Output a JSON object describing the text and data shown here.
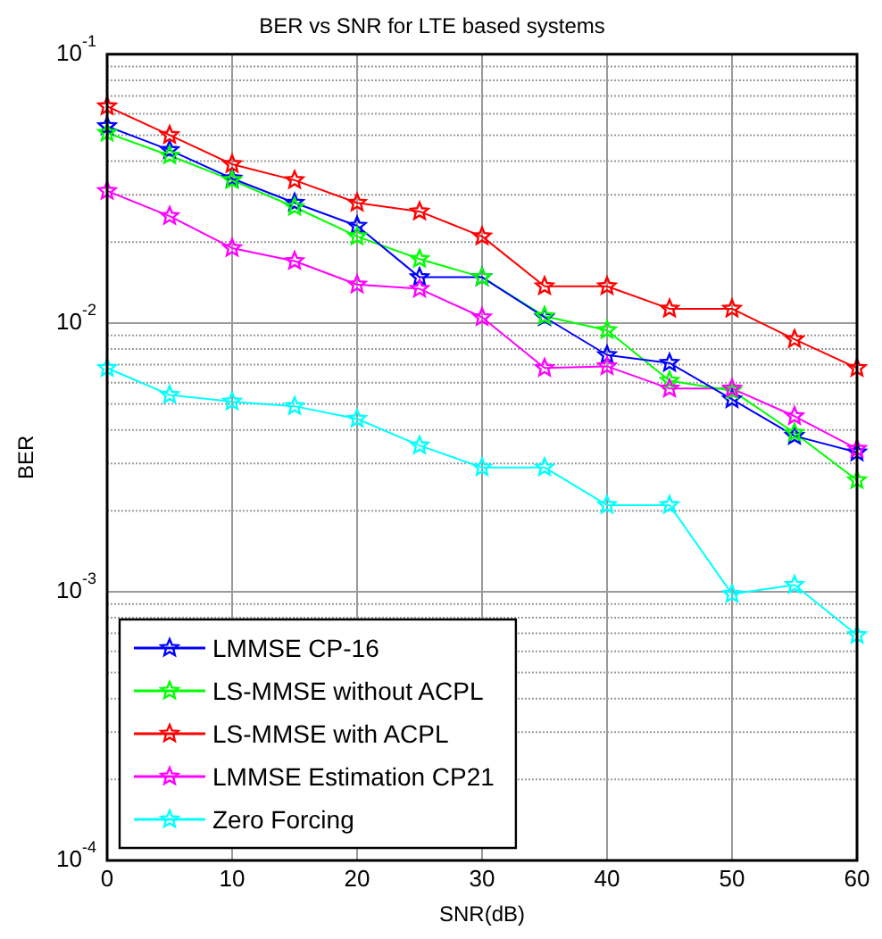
{
  "chart_data": {
    "type": "line",
    "title": "BER vs SNR for LTE based systems",
    "xlabel": "SNR(dB)",
    "ylabel": "BER",
    "x": [
      0,
      5,
      10,
      15,
      20,
      25,
      30,
      35,
      40,
      45,
      50,
      55,
      60
    ],
    "series": [
      {
        "name": "LMMSE CP-16",
        "color": "#0000ff",
        "values": [
          0.054,
          0.044,
          0.0345,
          0.028,
          0.023,
          0.0148,
          0.0148,
          0.0105,
          0.0076,
          0.0071,
          0.0052,
          0.0038,
          0.0033
        ]
      },
      {
        "name": "LS-MMSE without ACPL",
        "color": "#00ff00",
        "values": [
          0.051,
          0.042,
          0.034,
          0.027,
          0.021,
          0.0173,
          0.0148,
          0.0106,
          0.0094,
          0.0061,
          0.0056,
          0.0039,
          0.0026
        ]
      },
      {
        "name": "LS-MMSE with ACPL",
        "color": "#ff0000",
        "values": [
          0.064,
          0.05,
          0.039,
          0.034,
          0.028,
          0.026,
          0.021,
          0.0137,
          0.0137,
          0.0113,
          0.0113,
          0.0087,
          0.0068
        ]
      },
      {
        "name": "LMMSE Estimation CP21",
        "color": "#ff00ff",
        "values": [
          0.031,
          0.025,
          0.019,
          0.017,
          0.0139,
          0.0134,
          0.0105,
          0.0068,
          0.0069,
          0.0057,
          0.0057,
          0.0045,
          0.0034
        ]
      },
      {
        "name": "Zero Forcing",
        "color": "#00ffff",
        "values": [
          0.0068,
          0.0054,
          0.0051,
          0.0049,
          0.0044,
          0.0035,
          0.0029,
          0.0029,
          0.0021,
          0.0021,
          0.00098,
          0.00106,
          0.00069
        ]
      }
    ],
    "xlim": [
      0,
      60
    ],
    "xticks": [
      0,
      10,
      20,
      30,
      40,
      50,
      60
    ],
    "ylim": [
      0.0001,
      0.1
    ],
    "yticks": [
      {
        "value": 0.0001,
        "label": "10$^{-4}$"
      },
      {
        "value": 0.001,
        "label": "10$^{-3}$"
      },
      {
        "value": 0.01,
        "label": "10$^{-2}$"
      },
      {
        "value": 0.1,
        "label": "10$^{-1}$"
      }
    ],
    "log": "y",
    "grid": true,
    "legend": "bottom left",
    "marker": "star",
    "line_style": "solid"
  }
}
